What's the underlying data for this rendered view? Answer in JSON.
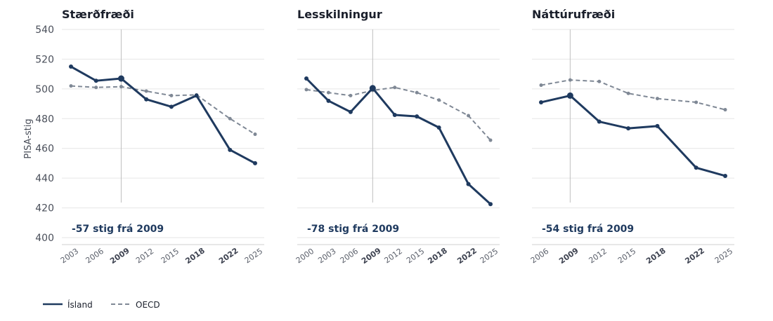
{
  "colors": {
    "island": "#1f3a5f",
    "oecd": "#7f8895",
    "grid": "#e6e6e6",
    "marker_line": "#bfbfbf",
    "text": "#1a1f2b"
  },
  "ylabel": "PISA-stig",
  "yticks": [
    400,
    420,
    440,
    460,
    480,
    500,
    520,
    540
  ],
  "legend": [
    {
      "name": "Ísland",
      "style": "solid",
      "color": "#1f3a5f"
    },
    {
      "name": "OECD",
      "style": "dashed",
      "color": "#7f8895"
    }
  ],
  "chart_data": [
    {
      "type": "line",
      "title": "Stærðfræði",
      "ylabel": "PISA-stig",
      "ylim": [
        395,
        545
      ],
      "x_ticks": [
        "2003",
        "2006",
        "2009",
        "2012",
        "2015",
        "2018",
        "2022",
        "2025"
      ],
      "bold_ticks": [
        "2009",
        "2018",
        "2022"
      ],
      "highlight_year": "2009",
      "series": [
        {
          "name": "Ísland",
          "x": [
            "2003",
            "2006",
            "2009",
            "2012",
            "2015",
            "2018",
            "2022",
            "2025"
          ],
          "values": [
            515,
            505.5,
            507,
            493,
            488,
            495.5,
            459,
            450
          ]
        },
        {
          "name": "OECD",
          "x": [
            "2003",
            "2006",
            "2009",
            "2012",
            "2015",
            "2018",
            "2022",
            "2025"
          ],
          "values": [
            502,
            501,
            501.5,
            498.5,
            495.5,
            496,
            480,
            469.5
          ]
        }
      ],
      "annotation": "-57 stig frá 2009"
    },
    {
      "type": "line",
      "title": "Lesskilningur",
      "ylim": [
        395,
        545
      ],
      "x_ticks": [
        "2000",
        "2003",
        "2006",
        "2009",
        "2012",
        "2015",
        "2018",
        "2022",
        "2025"
      ],
      "bold_ticks": [
        "2009",
        "2018",
        "2022"
      ],
      "highlight_year": "2009",
      "series": [
        {
          "name": "Ísland",
          "x": [
            "2000",
            "2003",
            "2006",
            "2009",
            "2012",
            "2015",
            "2018",
            "2022",
            "2025"
          ],
          "values": [
            507,
            492,
            484.5,
            500.5,
            482.5,
            481.5,
            474,
            436,
            422.5
          ]
        },
        {
          "name": "OECD",
          "x": [
            "2000",
            "2003",
            "2006",
            "2009",
            "2012",
            "2015",
            "2018",
            "2022",
            "2025"
          ],
          "values": [
            499.5,
            497.5,
            495.5,
            499,
            501,
            497.5,
            492.5,
            482,
            465.5
          ]
        }
      ],
      "annotation": "-78 stig frá 2009"
    },
    {
      "type": "line",
      "title": "Náttúrufræði",
      "ylim": [
        395,
        545
      ],
      "x_ticks": [
        "2006",
        "2009",
        "2012",
        "2015",
        "2018",
        "2022",
        "2025"
      ],
      "bold_ticks": [
        "2009",
        "2018",
        "2022"
      ],
      "highlight_year": "2009",
      "series": [
        {
          "name": "Ísland",
          "x": [
            "2006",
            "2009",
            "2012",
            "2015",
            "2018",
            "2022",
            "2025"
          ],
          "values": [
            491,
            495.5,
            478,
            473.5,
            475,
            447,
            441.5
          ]
        },
        {
          "name": "OECD",
          "x": [
            "2006",
            "2009",
            "2012",
            "2015",
            "2018",
            "2022",
            "2025"
          ],
          "values": [
            502.5,
            506,
            505,
            497,
            493.5,
            491,
            486
          ]
        }
      ],
      "annotation": "-54 stig frá 2009"
    }
  ]
}
